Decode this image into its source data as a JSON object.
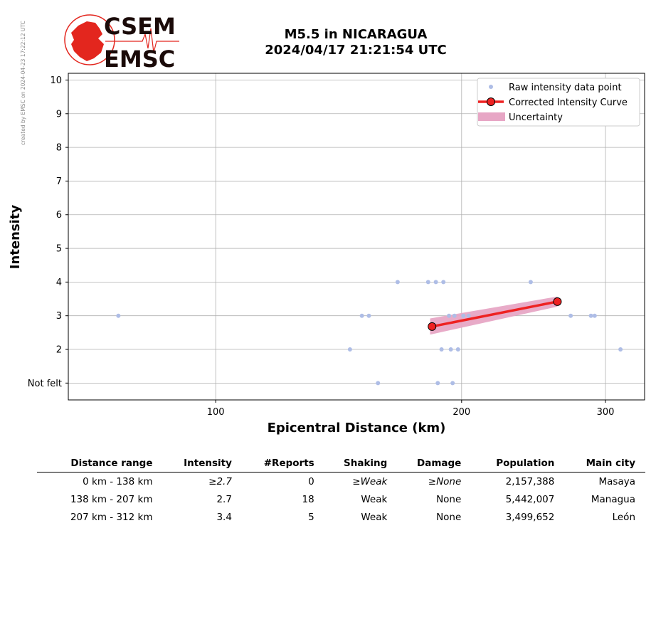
{
  "credit": "created by EMSC on 2024-04-23 17:22:12 UTC",
  "logo": {
    "top": "CSEM",
    "bottom": "EMSC",
    "color": "#e3261e"
  },
  "title": {
    "line1": "M5.5 in NICARAGUA",
    "line2": "2024/04/17 21:21:54 UTC"
  },
  "chart_data": {
    "type": "scatter",
    "xlabel": "Epicentral Distance (km)",
    "ylabel": "Intensity",
    "xscale": "log",
    "xlim": [
      66,
      335
    ],
    "ylim": [
      0.5,
      10.2
    ],
    "xticks": [
      100,
      200,
      300
    ],
    "yticks": [
      1,
      2,
      3,
      4,
      5,
      6,
      7,
      8,
      9,
      10
    ],
    "ytick_labels": [
      "Not felt",
      "2",
      "3",
      "4",
      "5",
      "6",
      "7",
      "8",
      "9",
      "10"
    ],
    "grid": true,
    "legend_position": "top-right",
    "legend": [
      "Raw intensity data point",
      "Corrected Intensity Curve",
      "Uncertainty"
    ],
    "colors": {
      "raw": "#aebde6",
      "curve": "#ee2222",
      "uncertainty": "#e7a6c5"
    },
    "raw_points": [
      {
        "x": 76,
        "y": 3
      },
      {
        "x": 151,
        "y": 3
      },
      {
        "x": 154,
        "y": 3
      },
      {
        "x": 146,
        "y": 2
      },
      {
        "x": 167,
        "y": 4
      },
      {
        "x": 182,
        "y": 4
      },
      {
        "x": 186,
        "y": 4
      },
      {
        "x": 190,
        "y": 4
      },
      {
        "x": 243,
        "y": 4
      },
      {
        "x": 158,
        "y": 1
      },
      {
        "x": 187,
        "y": 1
      },
      {
        "x": 195,
        "y": 1
      },
      {
        "x": 189,
        "y": 2
      },
      {
        "x": 194,
        "y": 2
      },
      {
        "x": 198,
        "y": 2
      },
      {
        "x": 193,
        "y": 3
      },
      {
        "x": 196,
        "y": 3
      },
      {
        "x": 201,
        "y": 3
      },
      {
        "x": 204,
        "y": 3
      },
      {
        "x": 272,
        "y": 3
      },
      {
        "x": 288,
        "y": 3
      },
      {
        "x": 291,
        "y": 3
      },
      {
        "x": 313,
        "y": 2
      }
    ],
    "series": [
      {
        "name": "Corrected Intensity Curve",
        "x": [
          184,
          262
        ],
        "y": [
          2.68,
          3.42
        ]
      }
    ],
    "uncertainty": {
      "x": [
        183,
        262
      ],
      "lower": [
        2.44,
        3.27
      ],
      "upper": [
        2.92,
        3.57
      ]
    }
  },
  "table": {
    "headers": [
      "Distance range",
      "Intensity",
      "#Reports",
      "Shaking",
      "Damage",
      "Population",
      "Main city"
    ],
    "rows": [
      {
        "range": "0 km -  138 km",
        "intensity": "≥2.7",
        "reports": "0",
        "shaking": "≥Weak",
        "damage": "≥None",
        "population": "2,157,388",
        "city": "Masaya",
        "italic": true
      },
      {
        "range": "138 km -  207 km",
        "intensity": "2.7",
        "reports": "18",
        "shaking": "Weak",
        "damage": "None",
        "population": "5,442,007",
        "city": "Managua",
        "italic": false
      },
      {
        "range": "207 km -  312 km",
        "intensity": "3.4",
        "reports": "5",
        "shaking": "Weak",
        "damage": "None",
        "population": "3,499,652",
        "city": "León",
        "italic": false
      }
    ]
  }
}
